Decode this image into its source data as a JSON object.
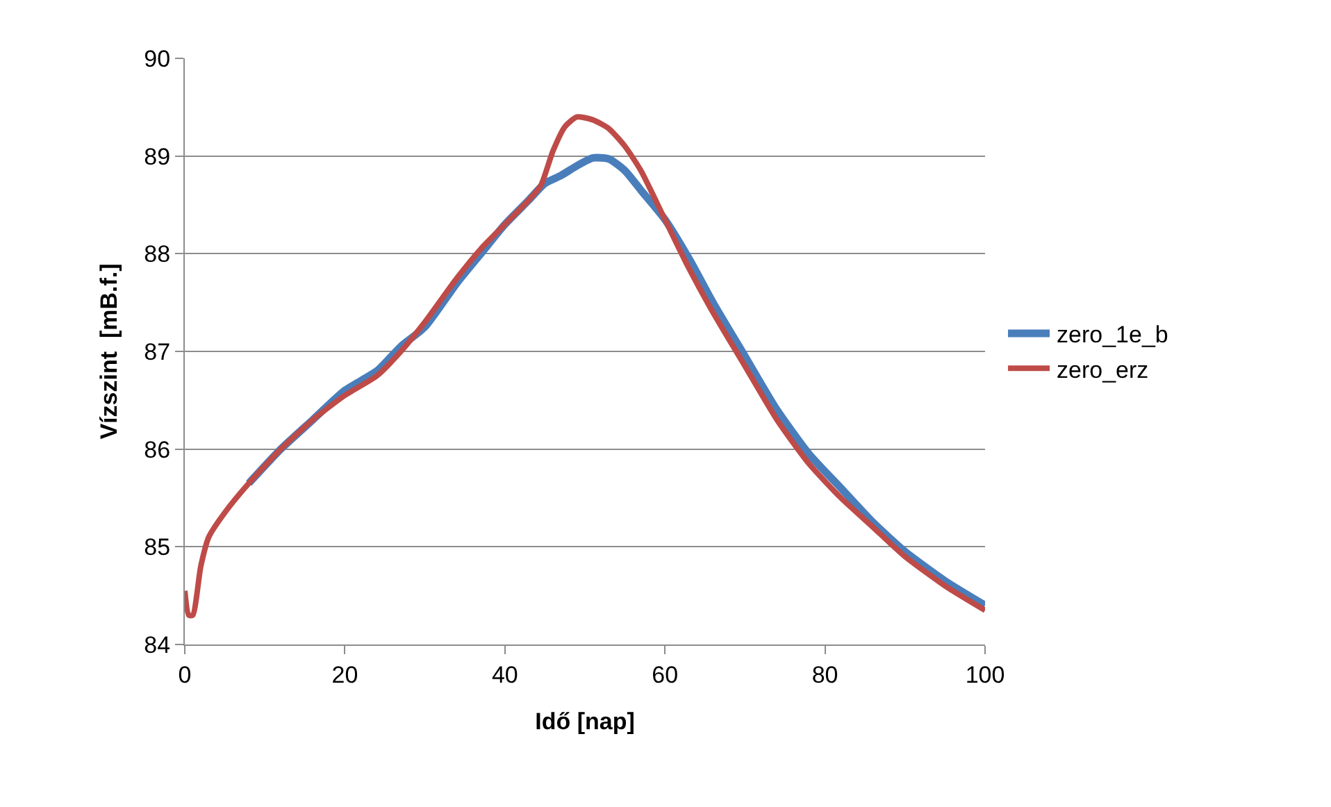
{
  "chart_data": {
    "type": "line",
    "xlabel": "Idő [nap]",
    "ylabel": "Vízszint  [mB.f.]",
    "xlim": [
      0,
      100
    ],
    "xticks": [
      0,
      20,
      40,
      60,
      80,
      100
    ],
    "ylim": [
      84,
      90
    ],
    "yticks": [
      84,
      85,
      86,
      87,
      88,
      89,
      90
    ],
    "grid": "y",
    "legend": "right",
    "line_style": "solid",
    "marker": "none",
    "series": [
      {
        "name": "zero_1e_b",
        "color": "#4a7ebb",
        "x": [
          8,
          12,
          16,
          20,
          24,
          27,
          30,
          34,
          37,
          40,
          43,
          45,
          47,
          49,
          51,
          53,
          55,
          57,
          60,
          63,
          66,
          70,
          74,
          78,
          82,
          86,
          90,
          95,
          100
        ],
        "values": [
          85.65,
          86.0,
          86.3,
          86.6,
          86.8,
          87.05,
          87.25,
          87.7,
          88.0,
          88.3,
          88.55,
          88.72,
          88.8,
          88.9,
          88.98,
          88.97,
          88.85,
          88.65,
          88.35,
          87.95,
          87.5,
          86.95,
          86.4,
          85.95,
          85.6,
          85.25,
          84.95,
          84.65,
          84.4
        ]
      },
      {
        "name": "zero_erz",
        "color": "#be4b48",
        "x": [
          0,
          0.5,
          1,
          2,
          3,
          5,
          8,
          12,
          16,
          20,
          24,
          27,
          30,
          34,
          37,
          40,
          43,
          44.5,
          46,
          47.5,
          49,
          51,
          53,
          55,
          57,
          60,
          63,
          66,
          70,
          74,
          78,
          82,
          86,
          90,
          95,
          100
        ],
        "values": [
          84.55,
          84.3,
          84.3,
          84.8,
          85.1,
          85.35,
          85.65,
          86.0,
          86.3,
          86.55,
          86.75,
          87.0,
          87.3,
          87.75,
          88.05,
          88.3,
          88.55,
          88.7,
          89.05,
          89.3,
          89.4,
          89.37,
          89.28,
          89.1,
          88.85,
          88.35,
          87.85,
          87.4,
          86.85,
          86.3,
          85.85,
          85.5,
          85.2,
          84.9,
          84.6,
          84.35
        ]
      }
    ]
  }
}
